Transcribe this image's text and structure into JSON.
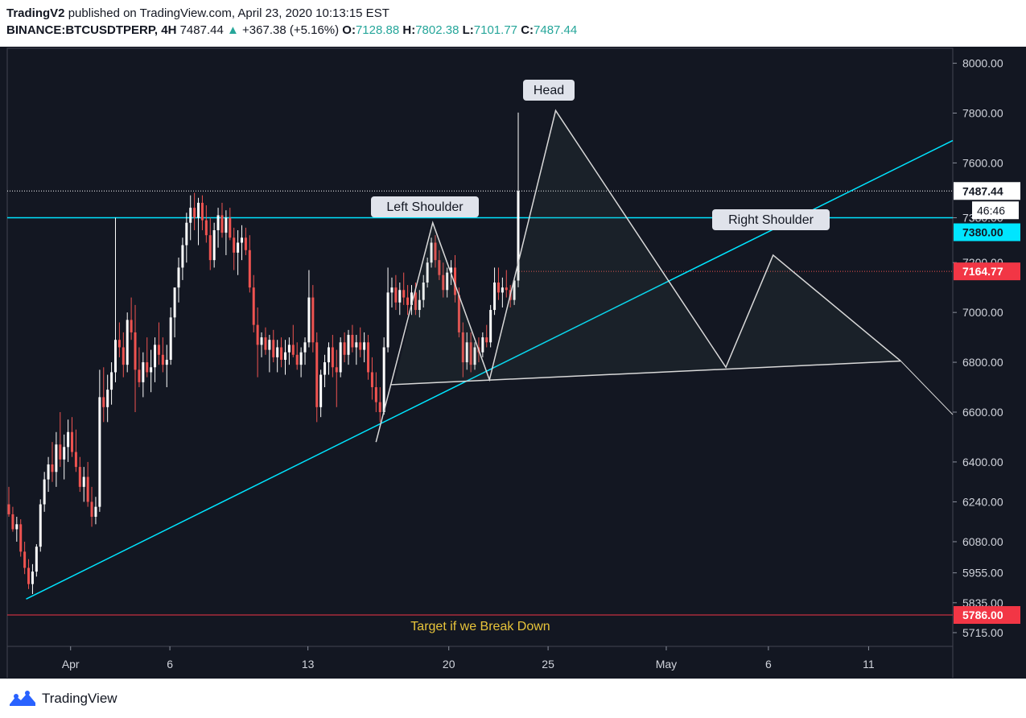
{
  "header": {
    "publisher": "TradingV2",
    "published_text": "published on TradingView.com, April 23, 2020 10:13:15 EST",
    "symbol": "BINANCE:BTCUSDTPERP, 4H",
    "last": "7487.44",
    "change": "+367.38 (+5.16%)",
    "open_label": "O:",
    "open": "7128.88",
    "high_label": "H:",
    "high": "7802.38",
    "low_label": "L:",
    "low": "7101.77",
    "close_label": "C:",
    "close": "7487.44"
  },
  "footer": {
    "brand": "TradingView",
    "logo_icon": "tradingview-logo-icon"
  },
  "colors": {
    "background": "#131722",
    "grid_border": "#434651",
    "trendline": "#00e5ff",
    "pattern_line": "#d9d9d9",
    "candle_up": "#ffffff",
    "candle_down": "#ef5350",
    "target_line": "#f23645",
    "target_text": "#e8c43a"
  },
  "chart_data": {
    "type": "candlestick",
    "symbol": "BINANCE:BTCUSDTPERP",
    "timeframe": "4H",
    "y_tick_labels": [
      "8000.00",
      "7800.00",
      "7600.00",
      "7380.00",
      "7200.00",
      "7000.00",
      "6800.00",
      "6600.00",
      "6400.00",
      "6240.00",
      "6080.00",
      "5955.00",
      "5835.00",
      "5715.00"
    ],
    "x_tick_labels": [
      "Apr",
      "6",
      "13",
      "20",
      "25",
      "May",
      "6",
      "11"
    ],
    "price_tags": [
      {
        "value": "7487.44",
        "style": "current"
      },
      {
        "value": "7380.00",
        "style": "horizontal-line"
      },
      {
        "value": "7164.77",
        "style": "red"
      },
      {
        "value": "5786.00",
        "style": "red"
      }
    ],
    "countdown": "46:46",
    "annotations": [
      {
        "text": "Head"
      },
      {
        "text": "Left Shoulder"
      },
      {
        "text": "Right Shoulder"
      },
      {
        "text": "Target if we Break Down"
      }
    ],
    "candles": [
      [
        6230,
        6300,
        6180,
        6190
      ],
      [
        6190,
        6220,
        6120,
        6130
      ],
      [
        6130,
        6180,
        6080,
        6150
      ],
      [
        6150,
        6170,
        6020,
        6040
      ],
      [
        6040,
        6080,
        5950,
        5975
      ],
      [
        5975,
        6010,
        5890,
        5910
      ],
      [
        5910,
        5990,
        5870,
        5960
      ],
      [
        5960,
        6070,
        5940,
        6060
      ],
      [
        6060,
        6250,
        6040,
        6230
      ],
      [
        6230,
        6360,
        6200,
        6330
      ],
      [
        6330,
        6420,
        6280,
        6390
      ],
      [
        6390,
        6480,
        6320,
        6360
      ],
      [
        6360,
        6520,
        6300,
        6470
      ],
      [
        6470,
        6600,
        6380,
        6410
      ],
      [
        6410,
        6510,
        6330,
        6460
      ],
      [
        6460,
        6570,
        6400,
        6520
      ],
      [
        6520,
        6580,
        6420,
        6440
      ],
      [
        6440,
        6530,
        6360,
        6380
      ],
      [
        6380,
        6420,
        6280,
        6300
      ],
      [
        6300,
        6380,
        6240,
        6340
      ],
      [
        6340,
        6400,
        6220,
        6240
      ],
      [
        6240,
        6300,
        6140,
        6180
      ],
      [
        6180,
        6260,
        6150,
        6220
      ],
      [
        6220,
        6770,
        6200,
        6660
      ],
      [
        6660,
        6780,
        6560,
        6620
      ],
      [
        6620,
        6750,
        6560,
        6690
      ],
      [
        6690,
        6800,
        6630,
        6760
      ],
      [
        6760,
        7380,
        6720,
        6890
      ],
      [
        6890,
        6960,
        6820,
        6860
      ],
      [
        6860,
        6920,
        6740,
        6790
      ],
      [
        6790,
        7000,
        6760,
        6970
      ],
      [
        6970,
        7060,
        6890,
        6920
      ],
      [
        6920,
        7030,
        6600,
        6770
      ],
      [
        6770,
        6860,
        6700,
        6720
      ],
      [
        6720,
        6840,
        6660,
        6800
      ],
      [
        6800,
        6900,
        6740,
        6760
      ],
      [
        6760,
        6850,
        6680,
        6780
      ],
      [
        6780,
        6900,
        6720,
        6870
      ],
      [
        6870,
        6960,
        6790,
        6830
      ],
      [
        6830,
        6900,
        6760,
        6790
      ],
      [
        6790,
        6870,
        6700,
        6810
      ],
      [
        6810,
        7020,
        6790,
        6980
      ],
      [
        6980,
        7080,
        6900,
        7100
      ],
      [
        7100,
        7220,
        7040,
        7180
      ],
      [
        7180,
        7300,
        7130,
        7270
      ],
      [
        7270,
        7400,
        7200,
        7360
      ],
      [
        7360,
        7470,
        7290,
        7420
      ],
      [
        7420,
        7480,
        7330,
        7380
      ],
      [
        7380,
        7460,
        7270,
        7440
      ],
      [
        7440,
        7470,
        7330,
        7370
      ],
      [
        7370,
        7430,
        7280,
        7310
      ],
      [
        7310,
        7380,
        7170,
        7210
      ],
      [
        7210,
        7360,
        7180,
        7330
      ],
      [
        7330,
        7420,
        7260,
        7390
      ],
      [
        7390,
        7440,
        7300,
        7320
      ],
      [
        7320,
        7410,
        7230,
        7380
      ],
      [
        7380,
        7420,
        7290,
        7300
      ],
      [
        7300,
        7340,
        7170,
        7240
      ],
      [
        7240,
        7330,
        7150,
        7280
      ],
      [
        7280,
        7350,
        7210,
        7300
      ],
      [
        7300,
        7340,
        7230,
        7250
      ],
      [
        7250,
        7310,
        7080,
        7100
      ],
      [
        7100,
        7150,
        6920,
        6950
      ],
      [
        6950,
        7020,
        6740,
        6870
      ],
      [
        6870,
        6920,
        6820,
        6900
      ],
      [
        6900,
        6940,
        6830,
        6850
      ],
      [
        6850,
        6910,
        6760,
        6890
      ],
      [
        6890,
        6930,
        6800,
        6820
      ],
      [
        6820,
        6890,
        6760,
        6860
      ],
      [
        6860,
        6900,
        6780,
        6810
      ],
      [
        6810,
        6890,
        6750,
        6840
      ],
      [
        6840,
        6900,
        6790,
        6870
      ],
      [
        6870,
        6950,
        6820,
        6830
      ],
      [
        6830,
        6880,
        6770,
        6790
      ],
      [
        6790,
        6860,
        6740,
        6840
      ],
      [
        6840,
        6900,
        6790,
        6880
      ],
      [
        6880,
        7170,
        6860,
        7060
      ],
      [
        7060,
        7110,
        6840,
        6880
      ],
      [
        6880,
        6920,
        6560,
        6620
      ],
      [
        6620,
        6770,
        6580,
        6750
      ],
      [
        6750,
        6830,
        6700,
        6800
      ],
      [
        6800,
        6880,
        6750,
        6860
      ],
      [
        6860,
        6910,
        6740,
        6780
      ],
      [
        6780,
        6850,
        6620,
        6760
      ],
      [
        6760,
        6900,
        6740,
        6880
      ],
      [
        6880,
        6920,
        6800,
        6830
      ],
      [
        6830,
        6930,
        6790,
        6910
      ],
      [
        6910,
        6950,
        6840,
        6860
      ],
      [
        6860,
        6910,
        6790,
        6880
      ],
      [
        6880,
        6940,
        6820,
        6850
      ],
      [
        6850,
        6920,
        6800,
        6880
      ],
      [
        6880,
        6910,
        6730,
        6760
      ],
      [
        6760,
        6820,
        6650,
        6700
      ],
      [
        6700,
        6760,
        6600,
        6640
      ],
      [
        6640,
        6700,
        6560,
        6600
      ],
      [
        6600,
        6900,
        6590,
        6860
      ],
      [
        6860,
        7180,
        6840,
        7080
      ],
      [
        7080,
        7140,
        7020,
        7100
      ],
      [
        7100,
        7150,
        7010,
        7040
      ],
      [
        7040,
        7120,
        6990,
        7090
      ],
      [
        7090,
        7160,
        7030,
        7060
      ],
      [
        7060,
        7110,
        6990,
        7030
      ],
      [
        7030,
        7110,
        6990,
        7080
      ],
      [
        7080,
        7120,
        6990,
        7010
      ],
      [
        7010,
        7090,
        6980,
        7050
      ],
      [
        7050,
        7150,
        7020,
        7120
      ],
      [
        7120,
        7220,
        7100,
        7200
      ],
      [
        7200,
        7300,
        7180,
        7280
      ],
      [
        7280,
        7310,
        7180,
        7210
      ],
      [
        7210,
        7250,
        7130,
        7150
      ],
      [
        7150,
        7200,
        7060,
        7090
      ],
      [
        7090,
        7180,
        7060,
        7160
      ],
      [
        7160,
        7210,
        7110,
        7180
      ],
      [
        7180,
        7230,
        7040,
        7070
      ],
      [
        7070,
        7100,
        6900,
        6920
      ],
      [
        6920,
        6960,
        6740,
        6800
      ],
      [
        6800,
        6920,
        6770,
        6880
      ],
      [
        6880,
        6920,
        6760,
        6790
      ],
      [
        6790,
        6880,
        6770,
        6860
      ],
      [
        6860,
        6900,
        6800,
        6840
      ],
      [
        6840,
        6920,
        6820,
        6900
      ],
      [
        6900,
        6950,
        6860,
        6880
      ],
      [
        6880,
        7030,
        6860,
        7010
      ],
      [
        7010,
        7180,
        6990,
        7120
      ],
      [
        7120,
        7180,
        7050,
        7080
      ],
      [
        7080,
        7140,
        7020,
        7100
      ],
      [
        7100,
        7170,
        7060,
        7090
      ],
      [
        7090,
        7110,
        7020,
        7050
      ],
      [
        7050,
        7140,
        7030,
        7128
      ],
      [
        7128,
        7802,
        7101,
        7487
      ]
    ],
    "trendline": [
      {
        "x": 0.02,
        "price": 5850
      },
      {
        "x": 1.0,
        "price": 7690
      }
    ],
    "horizontal_level": 7380,
    "target_level": 5786,
    "current_price": 7487.44,
    "red_level": 7164.77,
    "pattern": {
      "path": [
        [
          0.39,
          6480
        ],
        [
          0.45,
          7360
        ],
        [
          0.51,
          6730
        ],
        [
          0.58,
          7810
        ],
        [
          0.76,
          6780
        ],
        [
          0.81,
          7230
        ],
        [
          0.945,
          6805
        ]
      ],
      "neckline": [
        [
          0.405,
          6710
        ],
        [
          0.945,
          6805
        ]
      ],
      "extension": [
        [
          0.945,
          6805
        ],
        [
          1.0,
          6590
        ]
      ]
    },
    "y_domain": [
      5660,
      8060
    ]
  }
}
